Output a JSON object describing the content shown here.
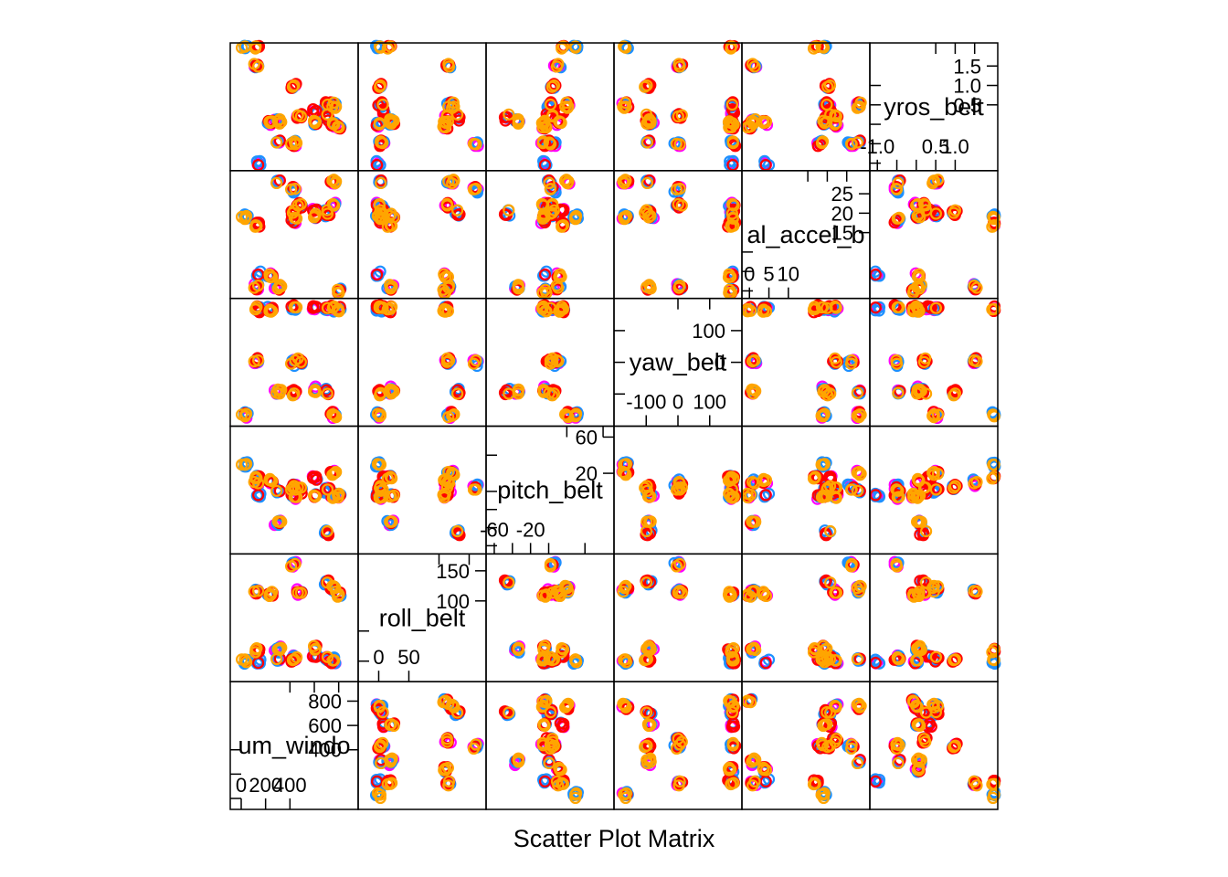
{
  "chart_data": {
    "type": "scatter",
    "title": "Scatter Plot Matrix",
    "matrix_layout": "lower-left to upper-right diagonal",
    "variables": [
      {
        "name": "num_window",
        "range": [
          -60,
          930
        ],
        "inner_ticks": [
          0,
          200,
          400
        ],
        "outer_ticks": [
          400,
          600,
          800
        ],
        "inner_labels": [
          "0",
          "200",
          "400"
        ],
        "outer_labels": [
          "400",
          "600",
          "800"
        ]
      },
      {
        "name": "roll_belt",
        "range": [
          -28,
          172
        ],
        "inner_ticks": [
          0,
          50
        ],
        "outer_ticks": [
          100,
          150
        ],
        "inner_labels": [
          "0",
          "50"
        ],
        "outer_labels": [
          "100",
          "150"
        ]
      },
      {
        "name": "pitch_belt",
        "range": [
          -65,
          68
        ],
        "inner_ticks": [
          -60,
          -20
        ],
        "outer_ticks": [
          20,
          60
        ],
        "inner_labels": [
          "-60",
          "-20"
        ],
        "outer_labels": [
          "20",
          "60"
        ],
        "inner_minor": [
          -40,
          0,
          40
        ]
      },
      {
        "name": "yaw_belt",
        "range": [
          -190,
          190
        ],
        "inner_ticks": [
          -100,
          0,
          100
        ],
        "outer_ticks": [
          0,
          100
        ],
        "inner_labels": [
          "-100",
          "0",
          "100"
        ],
        "outer_labels": [
          "0",
          "100"
        ]
      },
      {
        "name": "total_accel_belt",
        "range": [
          -1,
          30
        ],
        "inner_ticks": [
          0,
          5,
          10
        ],
        "outer_ticks": [
          15,
          20,
          25
        ],
        "inner_labels": [
          "0",
          "5",
          "10"
        ],
        "outer_labels": [
          "15",
          "20",
          "25"
        ]
      },
      {
        "name": "gyros_belt_x",
        "range": [
          -1.1,
          2.0
        ],
        "inner_ticks": [
          -1.0,
          0.5,
          1.0
        ],
        "outer_ticks": [
          0.5,
          1.0,
          1.5
        ],
        "inner_labels": [
          "-1.0",
          "0.5",
          "1.0"
        ],
        "outer_labels": [
          "0.5",
          "1.0",
          "1.5"
        ],
        "inner_minor": [
          -0.5,
          0.0
        ]
      }
    ],
    "diagonal_labels": [
      "um_windo",
      "roll_belt",
      "pitch_belt",
      "yaw_belt",
      "al_accel_b",
      "yros_belt"
    ],
    "series": [
      {
        "color": "#FF00FF"
      },
      {
        "color": "#1E90FF"
      },
      {
        "color": "#FF0000"
      },
      {
        "color": "#FFA500"
      }
    ],
    "clusters": {
      "num_window": [
        10,
        30,
        80,
        120,
        140,
        180,
        220,
        240,
        300,
        340,
        380,
        430,
        480,
        520,
        560,
        600,
        640,
        700,
        720,
        760,
        800,
        840,
        860
      ],
      "roll_belt": [
        0,
        1,
        3,
        5,
        8,
        20,
        110,
        115,
        120,
        125,
        130,
        140,
        150,
        160
      ],
      "pitch_belt": [
        -60,
        -45,
        -42,
        -35,
        -5,
        0,
        2,
        5,
        10,
        12,
        15,
        18,
        20,
        25,
        30,
        60
      ],
      "yaw_belt": [
        -165,
        -95,
        -92,
        -90,
        -88,
        -5,
        0,
        5,
        160,
        165,
        170
      ],
      "total_accel_belt": [
        0,
        1,
        2,
        3,
        4,
        17,
        18,
        19,
        20,
        21,
        22,
        24,
        26,
        28
      ],
      "gyros_belt_x": [
        -1.0,
        -0.5,
        -0.2,
        -0.05,
        0.0,
        0.02,
        0.05,
        0.1,
        0.2,
        0.3,
        0.5,
        1.0,
        1.5,
        2.0
      ]
    }
  }
}
